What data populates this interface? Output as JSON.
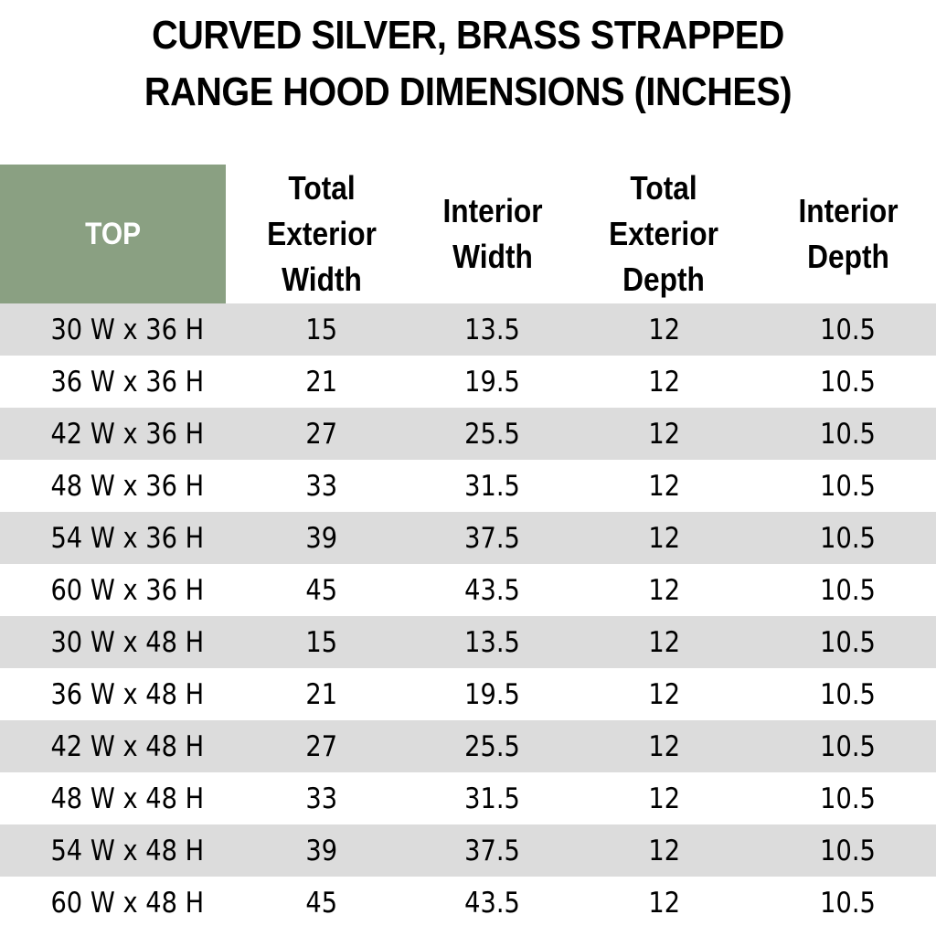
{
  "title": {
    "line1": "CURVED SILVER, BRASS STRAPPED",
    "line2": "RANGE HOOD DIMENSIONS (INCHES)"
  },
  "header": {
    "top": "TOP",
    "total_exterior_width": "Total\nExterior\nWidth",
    "interior_width": "Interior\nWidth",
    "total_exterior_depth": "Total\nExterior\nDepth",
    "interior_depth": "Interior\nDepth"
  },
  "colors": {
    "header_top_bg": "#8aa082",
    "row_shade": "#dcdcdc"
  },
  "rows": [
    {
      "top": "30 W x 36 H",
      "tew": "15",
      "iw": "13.5",
      "ted": "12",
      "id": "10.5"
    },
    {
      "top": "36 W x 36 H",
      "tew": "21",
      "iw": "19.5",
      "ted": "12",
      "id": "10.5"
    },
    {
      "top": "42 W x 36 H",
      "tew": "27",
      "iw": "25.5",
      "ted": "12",
      "id": "10.5"
    },
    {
      "top": "48 W x 36 H",
      "tew": "33",
      "iw": "31.5",
      "ted": "12",
      "id": "10.5"
    },
    {
      "top": "54 W x 36 H",
      "tew": "39",
      "iw": "37.5",
      "ted": "12",
      "id": "10.5"
    },
    {
      "top": "60 W x 36 H",
      "tew": "45",
      "iw": "43.5",
      "ted": "12",
      "id": "10.5"
    },
    {
      "top": "30 W x 48 H",
      "tew": "15",
      "iw": "13.5",
      "ted": "12",
      "id": "10.5"
    },
    {
      "top": "36 W x 48 H",
      "tew": "21",
      "iw": "19.5",
      "ted": "12",
      "id": "10.5"
    },
    {
      "top": "42 W x 48 H",
      "tew": "27",
      "iw": "25.5",
      "ted": "12",
      "id": "10.5"
    },
    {
      "top": "48 W x 48 H",
      "tew": "33",
      "iw": "31.5",
      "ted": "12",
      "id": "10.5"
    },
    {
      "top": "54 W x 48 H",
      "tew": "39",
      "iw": "37.5",
      "ted": "12",
      "id": "10.5"
    },
    {
      "top": "60 W x 48 H",
      "tew": "45",
      "iw": "43.5",
      "ted": "12",
      "id": "10.5"
    }
  ]
}
